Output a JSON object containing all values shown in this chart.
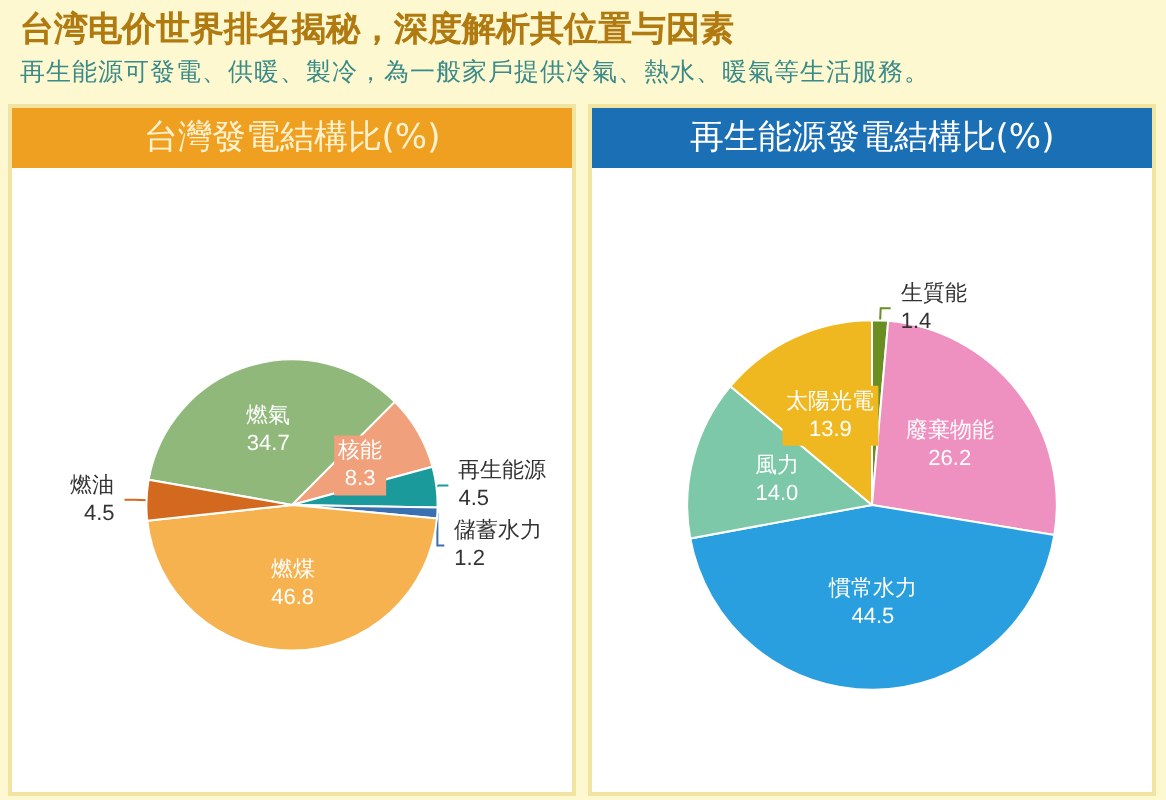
{
  "chart_data": [
    {
      "type": "pie",
      "title": "台灣發電結構比(%)",
      "annotations": [
        "台湾电价世界排名揭秘，深度解析其位置与因素",
        "再生能源可發電、供暖、製冷，為一般家戶提供冷氣、熱水、暖氣等生活服務。"
      ],
      "categories": [
        "燃氣",
        "核能",
        "再生能源",
        "儲蓄水力",
        "燃煤",
        "燃油"
      ],
      "values": [
        34.7,
        8.3,
        4.5,
        1.2,
        46.8,
        4.5
      ],
      "colors": [
        "#8fb87a",
        "#f0a07a",
        "#1a9a9a",
        "#3a6fb0",
        "#f5b24f",
        "#d2691e"
      ],
      "data_labels": true
    },
    {
      "type": "pie",
      "title": "再生能源發電結構比(%)",
      "categories": [
        "生質能",
        "廢棄物能",
        "慣常水力",
        "風力",
        "太陽光電"
      ],
      "values": [
        1.4,
        26.2,
        44.5,
        14.0,
        13.9
      ],
      "value_labels": [
        "1.4",
        "26.2",
        "44.5",
        "14.0",
        "13.9"
      ],
      "colors": [
        "#6b8e23",
        "#ee90c0",
        "#2a9fe0",
        "#7cc8a8",
        "#f0b820"
      ],
      "data_labels": true
    }
  ]
}
